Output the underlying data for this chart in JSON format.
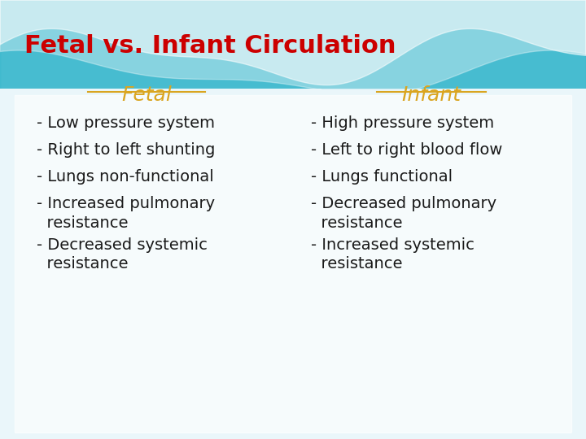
{
  "title": "Fetal vs. Infant Circulation",
  "title_color": "#CC0000",
  "title_fontsize": 22,
  "fetal_header": "Fetal",
  "infant_header": "Infant",
  "header_color": "#DAA520",
  "header_fontsize": 18,
  "fetal_items": [
    "- Low pressure system",
    "- Right to left shunting",
    "- Lungs non-functional",
    "- Increased pulmonary\n  resistance",
    "- Decreased systemic\n  resistance"
  ],
  "infant_items": [
    "- High pressure system",
    "- Left to right blood flow",
    "- Lungs functional",
    "- Decreased pulmonary\n  resistance",
    "- Increased systemic\n  resistance"
  ],
  "body_fontsize": 14,
  "body_color": "#1a1a1a",
  "teal_color": "#3AB8CC",
  "wave_color": "#FFFFFF",
  "bg_light": "#eaf6fa"
}
